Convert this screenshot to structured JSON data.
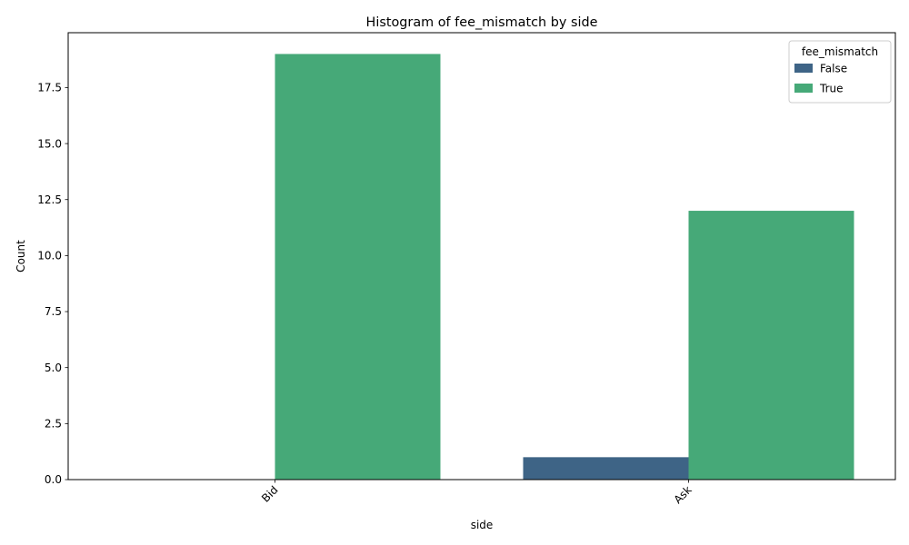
{
  "chart_data": {
    "type": "bar",
    "title": "Histogram of fee_mismatch by side",
    "xlabel": "side",
    "ylabel": "Count",
    "categories": [
      "Bid",
      "Ask"
    ],
    "series": [
      {
        "name": "False",
        "values": [
          0,
          1
        ],
        "color": "#3e6486"
      },
      {
        "name": "True",
        "values": [
          19,
          12
        ],
        "color": "#46a978"
      }
    ],
    "ylim": [
      0,
      19.95
    ],
    "yticks": [
      0,
      2.5,
      5,
      7.5,
      10,
      12.5,
      15,
      17.5
    ],
    "ytick_labels": [
      "0.0",
      "2.5",
      "5.0",
      "7.5",
      "10.0",
      "12.5",
      "15.0",
      "17.5"
    ],
    "xtick_rotation": 45,
    "legend": {
      "title": "fee_mismatch",
      "position": "top-right"
    },
    "grid": false
  }
}
